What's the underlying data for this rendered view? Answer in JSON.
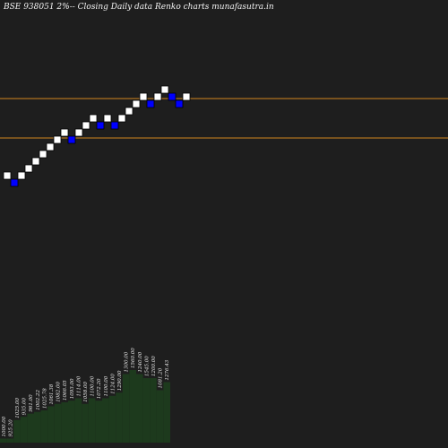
{
  "title": "BSE 938051 2%-- Closing Daily data  Renko  charts munafasutra.in",
  "colors": {
    "background": "#1e1e1e",
    "up_brick": "#ffffff",
    "down_brick": "#0000ff",
    "level_line": "#d2851f",
    "volume_bar": "#1d3a1d"
  },
  "chart_data": {
    "type": "renko",
    "brick_directions": [
      "up",
      "down",
      "up",
      "up",
      "up",
      "up",
      "up",
      "up",
      "up",
      "down",
      "up",
      "up",
      "up",
      "down",
      "up",
      "down",
      "up",
      "up",
      "up",
      "up",
      "down",
      "up",
      "up",
      "down",
      "down",
      "up"
    ],
    "horizontal_levels": [
      1296,
      1232
    ],
    "volume_labels": [
      "1000.00",
      "925.20",
      "1025.00",
      "935.00",
      "961.00",
      "1002.22",
      "1025.78",
      "1061.38",
      "1082.00",
      "1066.05",
      "1093.00",
      "1114.00",
      "1058.00",
      "1100.00",
      "1072.20",
      "1100.00",
      "1124.00",
      "1290.00",
      "1300.00",
      "1560.00",
      "1240.00",
      "1545.00",
      "1200.00",
      "1081.20",
      "1276.43"
    ],
    "volume_values": [
      0.05,
      0.05,
      0.28,
      0.32,
      0.36,
      0.38,
      0.4,
      0.45,
      0.48,
      0.5,
      0.52,
      0.55,
      0.48,
      0.55,
      0.52,
      0.55,
      0.58,
      0.62,
      0.85,
      0.9,
      0.85,
      0.8,
      0.8,
      0.65,
      0.75
    ]
  }
}
